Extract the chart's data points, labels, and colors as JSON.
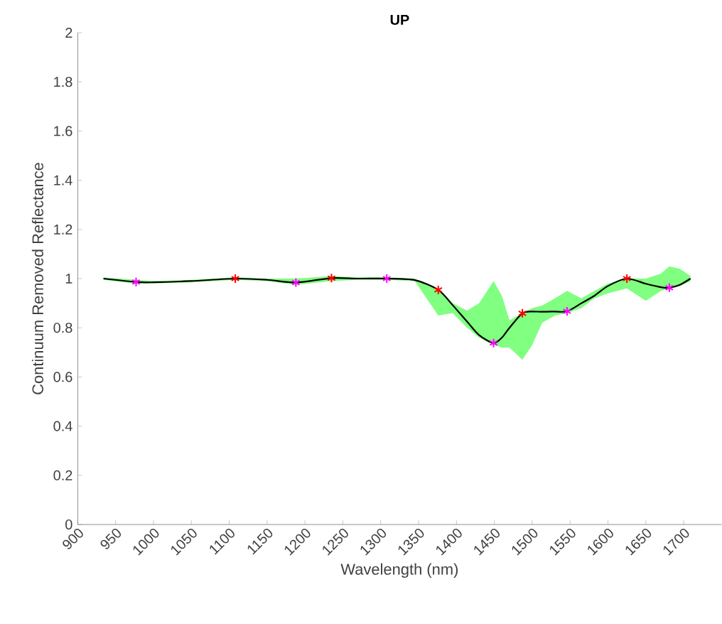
{
  "chart_data": {
    "type": "line",
    "title": "UP",
    "xlabel": "Wavelength (nm)",
    "ylabel": "Continuum Removed Reflectance",
    "xlim": [
      900,
      1750
    ],
    "ylim": [
      0,
      2
    ],
    "xticks": [
      900,
      950,
      1000,
      1050,
      1100,
      1150,
      1200,
      1250,
      1300,
      1350,
      1400,
      1450,
      1500,
      1550,
      1600,
      1650,
      1700
    ],
    "yticks": [
      0,
      0.2,
      0.4,
      0.6,
      0.8,
      1,
      1.2,
      1.4,
      1.6,
      1.8,
      2
    ],
    "grid": false,
    "series": [
      {
        "color": "#000000",
        "marker": "none",
        "line_style": "solid",
        "x": [
          934,
          977,
          1000,
          1050,
          1108,
          1150,
          1188,
          1235,
          1270,
          1308,
          1345,
          1376,
          1395,
          1414,
          1430,
          1449,
          1460,
          1470,
          1487,
          1500,
          1513,
          1530,
          1546,
          1565,
          1582,
          1600,
          1625,
          1650,
          1670,
          1681,
          1695,
          1709
        ],
        "values": [
          1.0,
          0.986,
          0.985,
          0.99,
          1.0,
          0.995,
          0.984,
          1.002,
          1.0,
          1.0,
          0.994,
          0.954,
          0.892,
          0.825,
          0.77,
          0.738,
          0.76,
          0.8,
          0.859,
          0.866,
          0.865,
          0.866,
          0.867,
          0.9,
          0.93,
          0.97,
          1.0,
          0.979,
          0.965,
          0.963,
          0.975,
          1.0
        ],
        "lower": [
          0.995,
          0.98,
          0.98,
          0.985,
          0.995,
          0.99,
          0.975,
          0.99,
          0.995,
          0.995,
          0.99,
          0.85,
          0.86,
          0.8,
          0.76,
          0.73,
          0.72,
          0.72,
          0.67,
          0.73,
          0.82,
          0.85,
          0.86,
          0.88,
          0.92,
          0.94,
          0.96,
          0.91,
          0.95,
          0.96,
          0.97,
          0.99
        ],
        "upper": [
          1.005,
          0.995,
          0.99,
          0.995,
          1.005,
          1.0,
          1.0,
          1.01,
          1.005,
          1.005,
          1.0,
          0.96,
          0.9,
          0.87,
          0.9,
          0.99,
          0.93,
          0.83,
          0.86,
          0.88,
          0.89,
          0.92,
          0.95,
          0.92,
          0.95,
          0.98,
          1.0,
          1.0,
          1.02,
          1.05,
          1.04,
          1.01
        ]
      },
      {
        "type": "scatter",
        "color": "#ff0000",
        "marker": "cross",
        "x": [
          1108,
          1235,
          1376,
          1487,
          1625
        ],
        "values": [
          1.0,
          1.002,
          0.954,
          0.859,
          1.0
        ]
      },
      {
        "type": "scatter",
        "color": "#ff00ff",
        "marker": "cross",
        "x": [
          977,
          1188,
          1308,
          1449,
          1546,
          1681
        ],
        "values": [
          0.986,
          0.984,
          1.0,
          0.738,
          0.867,
          0.963
        ]
      }
    ]
  }
}
